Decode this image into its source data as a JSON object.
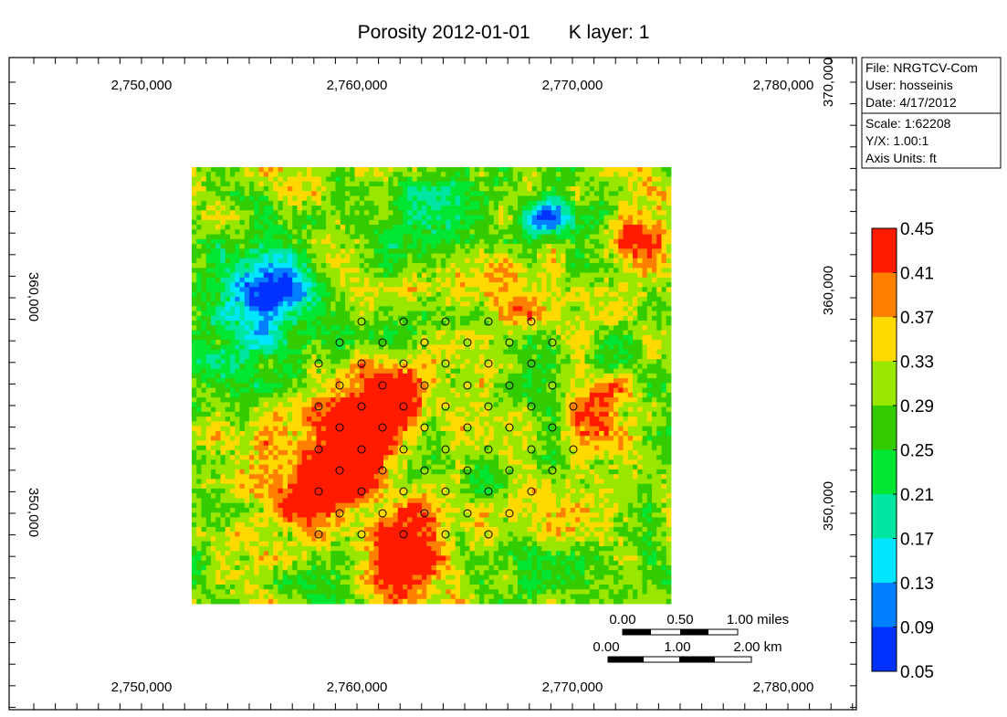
{
  "title": {
    "text_left": "Porosity 2012-01-01",
    "text_right": "K layer: 1"
  },
  "axes": {
    "x_ticks": [
      "2,750,000",
      "2,760,000",
      "2,770,000",
      "2,780,000"
    ],
    "y_ticks": [
      "360,000",
      "350,000"
    ],
    "y_top_right": "370,000"
  },
  "info_box": {
    "file": "File: NRGTCV-Com",
    "user": "User:  hosseinis",
    "date": "Date: 4/17/2012",
    "scale": "Scale: 1:62208",
    "yx": "Y/X: 1.00:1",
    "units": "Axis Units: ft"
  },
  "colorbar": {
    "labels": [
      "0.45",
      "0.41",
      "0.37",
      "0.33",
      "0.29",
      "0.25",
      "0.21",
      "0.17",
      "0.13",
      "0.09",
      "0.05"
    ],
    "colors": [
      "#ff1a00",
      "#ff8000",
      "#ffd900",
      "#99e600",
      "#33cc00",
      "#00e633",
      "#00e6a0",
      "#00e6ff",
      "#0080ff",
      "#0033ff",
      "#0000ff"
    ]
  },
  "scalebar": {
    "miles": [
      "0.00",
      "0.50",
      "1.00 miles"
    ],
    "km": [
      "0.00",
      "1.00",
      "2.00 km"
    ]
  },
  "map": {
    "description_colors": {
      "high": "#ff1a00",
      "mid_high": "#ff8000",
      "mid": "#ffd900",
      "mid_low": "#99e600",
      "low_mid": "#33cc00",
      "low": "#00e6a0",
      "lower": "#00e6ff",
      "lowest": "#0033ff"
    },
    "well_count": 66
  }
}
